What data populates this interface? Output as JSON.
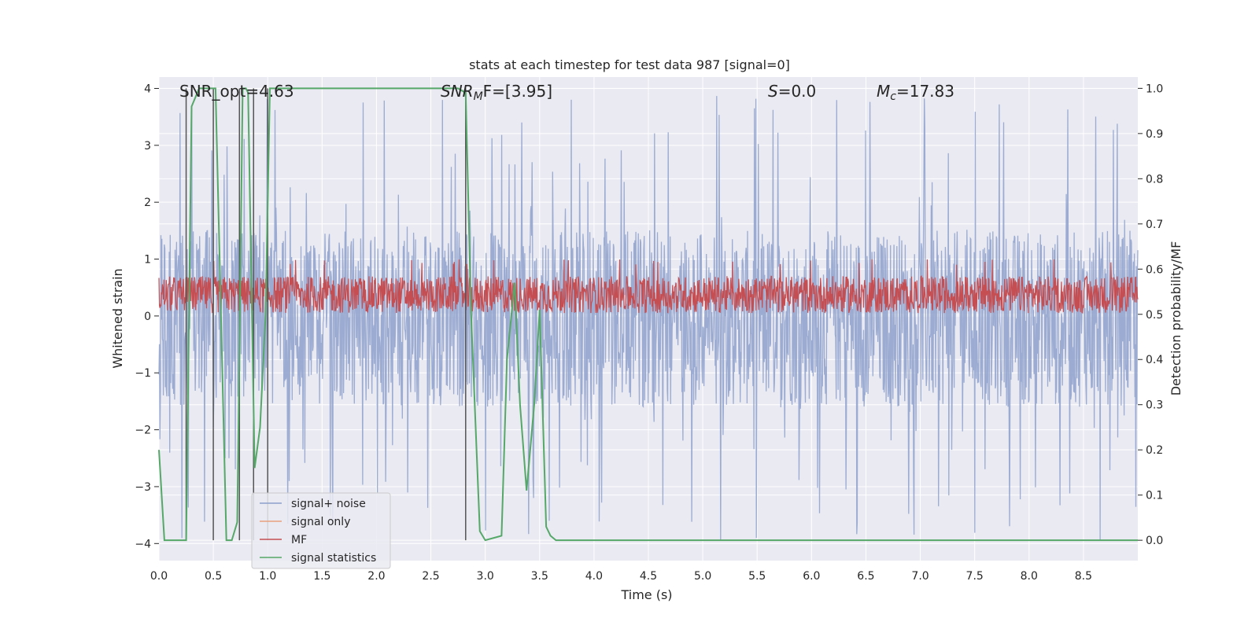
{
  "chart_data": {
    "type": "line",
    "title": "stats at each timestep for test data 987 [signal=0]",
    "xlabel": "Time (s)",
    "ylabel_left": "Whitened strain",
    "ylabel_right": "Detection probability/MF",
    "xlim": [
      0.0,
      9.0
    ],
    "ylim_left": [
      -4.3,
      4.2
    ],
    "ylim_right": [
      -0.045,
      1.025
    ],
    "x_ticks": [
      0.0,
      0.5,
      1.0,
      1.5,
      2.0,
      2.5,
      3.0,
      3.5,
      4.0,
      4.5,
      5.0,
      5.5,
      6.0,
      6.5,
      7.0,
      7.5,
      8.0,
      8.5
    ],
    "x_tick_labels": [
      "0.0",
      "0.5",
      "1.0",
      "1.5",
      "2.0",
      "2.5",
      "3.0",
      "3.5",
      "4.0",
      "4.5",
      "5.0",
      "5.5",
      "6.0",
      "6.5",
      "7.0",
      "7.5",
      "8.0",
      "8.5"
    ],
    "y_left_ticks": [
      -4,
      -3,
      -2,
      -1,
      0,
      1,
      2,
      3,
      4
    ],
    "y_left_tick_labels": [
      "−4",
      "−3",
      "−2",
      "−1",
      "0",
      "1",
      "2",
      "3",
      "4"
    ],
    "y_right_ticks": [
      0.0,
      0.1,
      0.2,
      0.3,
      0.4,
      0.5,
      0.6,
      0.7,
      0.8,
      0.9,
      1.0
    ],
    "y_right_tick_labels": [
      "0.0",
      "0.1",
      "0.2",
      "0.3",
      "0.4",
      "0.5",
      "0.6",
      "0.7",
      "0.8",
      "0.9",
      "1.0"
    ],
    "annotations": [
      {
        "id": "snr-opt",
        "text": "SNR_opt=4.63",
        "x": 0.2
      },
      {
        "id": "snr-mf",
        "text_prefix": "SNR",
        "text_sub": "M",
        "text_suffix": "F=[3.95]",
        "x": 2.6
      },
      {
        "id": "s-value",
        "text_prefix": "S",
        "text_suffix": "=0.0",
        "x": 5.6
      },
      {
        "id": "mc-value",
        "text_prefix": "M",
        "text_sub": "c",
        "text_suffix": "=17.83",
        "x": 6.6
      }
    ],
    "legend": {
      "placement": "lower-left",
      "entries": [
        {
          "label": "signal+ noise",
          "color": "#8da0cb"
        },
        {
          "label": "signal only",
          "color": "#e8a07e"
        },
        {
          "label": "MF",
          "color": "#c44e52"
        },
        {
          "label": "signal statistics",
          "color": "#55a868"
        }
      ]
    },
    "series": [
      {
        "name": "signal+ noise",
        "axis": "left",
        "color": "#8da0cb",
        "band_typical": [
          -1.6,
          1.5
        ],
        "peak_range": [
          -4.0,
          3.9
        ],
        "samples_approx": 2000
      },
      {
        "name": "MF",
        "axis": "left",
        "color": "#c44e52",
        "band_typical": [
          0.05,
          0.7
        ],
        "peak_range": [
          -0.05,
          1.0
        ],
        "samples_approx": 2000
      },
      {
        "name": "signal statistics",
        "axis": "right",
        "color": "#55a868",
        "x": [
          0.0,
          0.05,
          0.1,
          0.25,
          0.3,
          0.37,
          0.44,
          0.49,
          0.52,
          0.62,
          0.67,
          0.72,
          0.77,
          0.8,
          0.82,
          0.88,
          0.93,
          0.98,
          1.02,
          1.06,
          1.1,
          2.75,
          2.82,
          2.87,
          2.95,
          3.0,
          3.15,
          3.2,
          3.27,
          3.32,
          3.38,
          3.45,
          3.5,
          3.56,
          3.6,
          3.65,
          9.0
        ],
        "y": [
          0.2,
          0.0,
          0.0,
          0.0,
          0.96,
          1.0,
          1.0,
          1.0,
          1.0,
          0.0,
          0.0,
          0.04,
          1.0,
          1.0,
          0.99,
          0.16,
          0.25,
          0.5,
          1.0,
          1.0,
          1.0,
          1.0,
          0.99,
          0.5,
          0.02,
          0.0,
          0.01,
          0.4,
          0.57,
          0.3,
          0.11,
          0.3,
          0.51,
          0.03,
          0.01,
          0.0,
          0.0
        ]
      }
    ],
    "vertical_markers_x": [
      0.25,
      0.5,
      0.74,
      0.87,
      1.0,
      2.82
    ]
  }
}
